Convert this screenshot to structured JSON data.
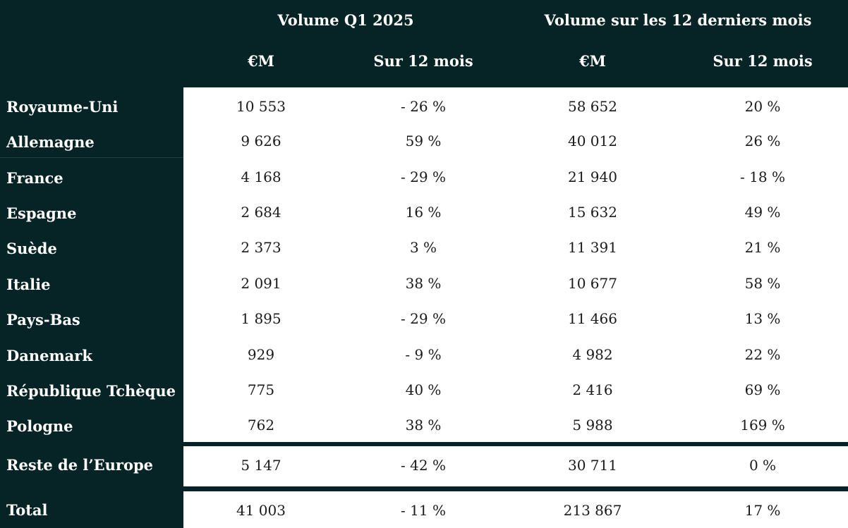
{
  "header": {
    "group1": "Volume Q1 2025",
    "group2": "Volume sur les 12 derniers mois",
    "col1": "€M",
    "col2": "Sur 12 mois",
    "col3": "€M",
    "col4": "Sur 12 mois"
  },
  "rows": [
    {
      "country": "Royaume-Uni",
      "q1_eur": "10 553",
      "q1_yoy": "- 26 %",
      "ltm_eur": "58 652",
      "ltm_yoy": "20 %"
    },
    {
      "country": "Allemagne",
      "q1_eur": "9 626",
      "q1_yoy": "59 %",
      "ltm_eur": "40 012",
      "ltm_yoy": "26 %"
    },
    {
      "country": "France",
      "q1_eur": "4 168",
      "q1_yoy": "- 29 %",
      "ltm_eur": "21 940",
      "ltm_yoy": "- 18 %"
    },
    {
      "country": "Espagne",
      "q1_eur": "2 684",
      "q1_yoy": "16 %",
      "ltm_eur": "15 632",
      "ltm_yoy": "49 %"
    },
    {
      "country": "Suède",
      "q1_eur": "2 373",
      "q1_yoy": "3 %",
      "ltm_eur": "11 391",
      "ltm_yoy": "21 %"
    },
    {
      "country": "Italie",
      "q1_eur": "2 091",
      "q1_yoy": "38 %",
      "ltm_eur": "10 677",
      "ltm_yoy": "58 %"
    },
    {
      "country": "Pays-Bas",
      "q1_eur": "1 895",
      "q1_yoy": "- 29 %",
      "ltm_eur": "11 466",
      "ltm_yoy": "13 %"
    },
    {
      "country": "Danemark",
      "q1_eur": "929",
      "q1_yoy": "- 9 %",
      "ltm_eur": "4 982",
      "ltm_yoy": "22 %"
    },
    {
      "country": "République Tchèque",
      "q1_eur": "775",
      "q1_yoy": "40 %",
      "ltm_eur": "2 416",
      "ltm_yoy": "69 %"
    },
    {
      "country": "Pologne",
      "q1_eur": "762",
      "q1_yoy": "38 %",
      "ltm_eur": "5 988",
      "ltm_yoy": "169 %"
    }
  ],
  "rest": {
    "country": "Reste de l’Europe",
    "q1_eur": "5 147",
    "q1_yoy": "- 42 %",
    "ltm_eur": "30 711",
    "ltm_yoy": "0 %"
  },
  "total": {
    "country": "Total",
    "q1_eur": "41 003",
    "q1_yoy": "- 11 %",
    "ltm_eur": "213 867",
    "ltm_yoy": "17 %"
  },
  "colors": {
    "dark_background": "#062326",
    "panel": "#ffffff",
    "body_text": "#1a1a1a"
  }
}
